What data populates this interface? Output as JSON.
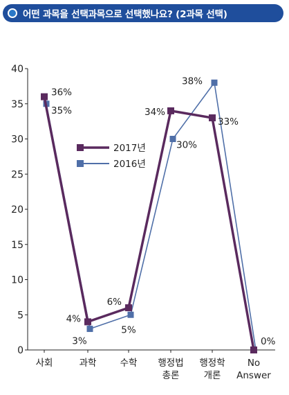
{
  "header": {
    "title": "어떤 과목을 선택과목으로 선택했나요? (2과목 선택)"
  },
  "chart_data": {
    "type": "line",
    "title": "",
    "xlabel": "",
    "ylabel": "",
    "ylim": [
      0,
      40
    ],
    "yticks": [
      "0",
      "5",
      "10",
      "15",
      "20",
      "25",
      "30",
      "35",
      "40"
    ],
    "categories": [
      [
        "사회"
      ],
      [
        "과학"
      ],
      [
        "수학"
      ],
      [
        "행정법",
        "총론"
      ],
      [
        "행정학",
        "개론"
      ],
      [
        "No",
        "Answer"
      ]
    ],
    "series": [
      {
        "name": "2017년",
        "color": "#5a2a5e",
        "values": [
          36,
          4,
          6,
          34,
          33,
          0
        ],
        "labels": [
          "36%",
          "4%",
          "6%",
          "34%",
          "33%",
          "0%"
        ]
      },
      {
        "name": "2016년",
        "color": "#4f6fa8",
        "values": [
          35,
          3,
          5,
          30,
          38,
          0
        ],
        "labels": [
          "35%",
          "3%",
          "5%",
          "30%",
          "38%",
          ""
        ]
      }
    ],
    "grid": false,
    "legend": "middle-left"
  }
}
